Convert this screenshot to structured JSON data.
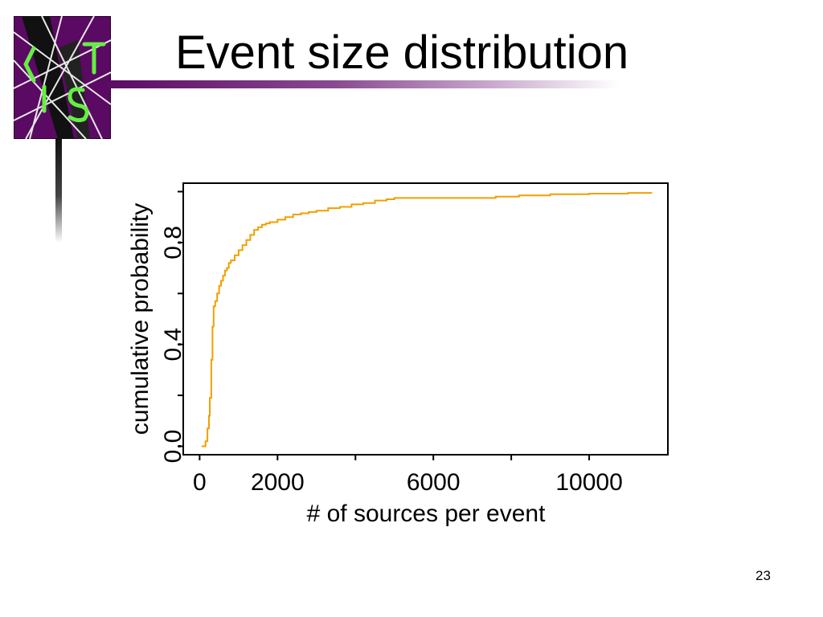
{
  "slide": {
    "title": "Event size distribution",
    "page_number": "23",
    "logo_icon": "lts-logo-icon",
    "accent_color": "#5a0a62"
  },
  "chart_data": {
    "type": "line",
    "title": "",
    "xlabel": "# of sources per event",
    "ylabel": "cumulative probability",
    "xlim": [
      -400,
      12000
    ],
    "ylim": [
      -0.03,
      1.03
    ],
    "x_ticks": [
      0,
      2000,
      4000,
      6000,
      8000,
      10000
    ],
    "x_tick_labels": [
      "0",
      "2000",
      "",
      "6000",
      "",
      "10000"
    ],
    "y_ticks": [
      0.0,
      0.2,
      0.4,
      0.6,
      0.8,
      1.0
    ],
    "y_tick_labels": [
      "0.0",
      "",
      "0.4",
      "",
      "0.8",
      ""
    ],
    "grid": false,
    "series": [
      {
        "color": "#f0a000",
        "step": true,
        "x": [
          50,
          150,
          200,
          240,
          260,
          300,
          330,
          360,
          400,
          450,
          500,
          550,
          600,
          650,
          700,
          750,
          800,
          900,
          1000,
          1100,
          1200,
          1300,
          1400,
          1500,
          1600,
          1700,
          1800,
          2000,
          2200,
          2400,
          2600,
          2800,
          3000,
          3300,
          3600,
          3900,
          4200,
          4500,
          4800,
          5000,
          5500,
          6000,
          7000,
          7600,
          8200,
          9000,
          10000,
          11000,
          11600
        ],
        "y": [
          0.0,
          0.02,
          0.07,
          0.12,
          0.19,
          0.34,
          0.47,
          0.55,
          0.57,
          0.6,
          0.63,
          0.65,
          0.67,
          0.69,
          0.7,
          0.72,
          0.73,
          0.75,
          0.77,
          0.79,
          0.81,
          0.83,
          0.85,
          0.86,
          0.87,
          0.875,
          0.88,
          0.89,
          0.9,
          0.91,
          0.915,
          0.92,
          0.925,
          0.935,
          0.94,
          0.95,
          0.955,
          0.965,
          0.97,
          0.975,
          0.975,
          0.975,
          0.975,
          0.98,
          0.985,
          0.99,
          0.992,
          0.995,
          0.997
        ]
      }
    ]
  }
}
